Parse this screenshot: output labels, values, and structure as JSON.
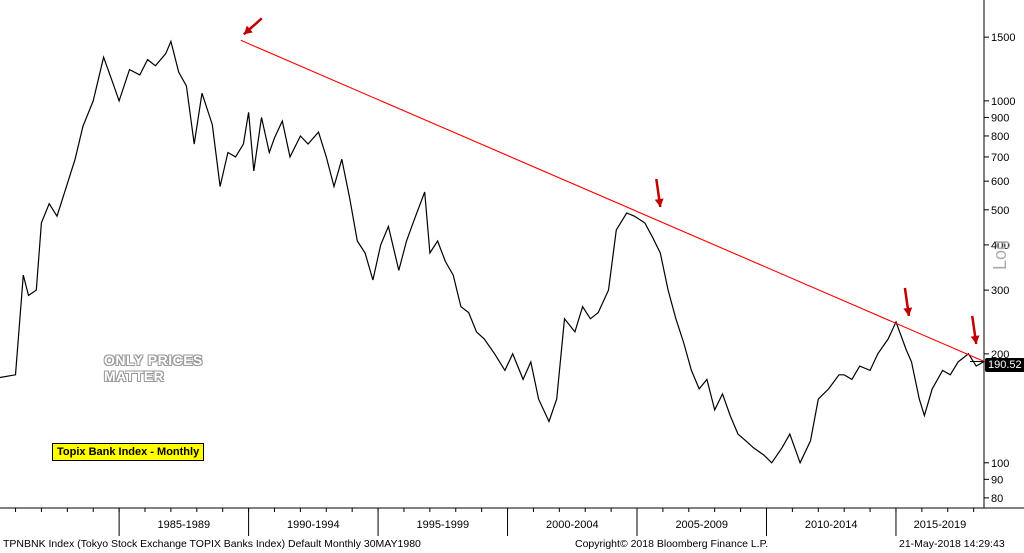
{
  "chart_data": {
    "type": "line",
    "yscale": "log",
    "ylim": [
      75,
      1900
    ],
    "y_ticks": [
      80,
      90,
      100,
      200,
      300,
      400,
      500,
      600,
      700,
      800,
      900,
      1000,
      1500
    ],
    "x_period_labels": [
      "1985-1989",
      "1990-1994",
      "1995-1999",
      "2000-2004",
      "2005-2009",
      "2010-2014",
      "2015-2019"
    ],
    "x_range": [
      1980.4,
      2018.4
    ],
    "axis_label": "Log",
    "last_value_label": "190.52",
    "series": [
      {
        "color": "#000000",
        "x": [
          1980.4,
          1981.0,
          1981.3,
          1981.5,
          1981.8,
          1982.0,
          1982.3,
          1982.6,
          1983.0,
          1983.3,
          1983.6,
          1984.0,
          1984.4,
          1984.8,
          1985.0,
          1985.4,
          1985.8,
          1986.1,
          1986.4,
          1986.8,
          1987.0,
          1987.3,
          1987.6,
          1987.9,
          1988.2,
          1988.6,
          1988.9,
          1989.2,
          1989.5,
          1989.8,
          1990.0,
          1990.2,
          1990.5,
          1990.8,
          1991.0,
          1991.3,
          1991.6,
          1992.0,
          1992.3,
          1992.7,
          1993.0,
          1993.3,
          1993.6,
          1993.9,
          1994.2,
          1994.5,
          1994.8,
          1995.1,
          1995.4,
          1995.8,
          1996.1,
          1996.4,
          1996.8,
          1997.0,
          1997.3,
          1997.6,
          1997.9,
          1998.2,
          1998.5,
          1998.8,
          1999.1,
          1999.5,
          1999.9,
          2000.2,
          2000.6,
          2000.9,
          2001.2,
          2001.6,
          2001.9,
          2002.2,
          2002.6,
          2002.9,
          2003.2,
          2003.5,
          2003.9,
          2004.2,
          2004.6,
          2004.9,
          2005.3,
          2005.6,
          2005.9,
          2006.2,
          2006.5,
          2006.8,
          2007.1,
          2007.4,
          2007.7,
          2008.0,
          2008.3,
          2008.6,
          2008.9,
          2009.2,
          2009.5,
          2009.9,
          2010.2,
          2010.6,
          2010.9,
          2011.3,
          2011.7,
          2012.0,
          2012.4,
          2012.8,
          2013.0,
          2013.3,
          2013.6,
          2014.0,
          2014.3,
          2014.7,
          2015.0,
          2015.4,
          2015.6,
          2015.9,
          2016.1,
          2016.4,
          2016.8,
          2017.1,
          2017.4,
          2017.8,
          2018.1,
          2018.4
        ],
        "values": [
          172,
          175,
          330,
          290,
          300,
          460,
          520,
          480,
          590,
          690,
          850,
          1000,
          1320,
          1100,
          1000,
          1220,
          1180,
          1300,
          1250,
          1350,
          1460,
          1200,
          1100,
          760,
          1050,
          860,
          580,
          720,
          700,
          760,
          930,
          640,
          900,
          720,
          790,
          880,
          700,
          800,
          760,
          820,
          700,
          580,
          690,
          540,
          410,
          380,
          320,
          400,
          450,
          340,
          410,
          470,
          560,
          380,
          410,
          360,
          330,
          270,
          260,
          230,
          220,
          200,
          180,
          200,
          170,
          190,
          150,
          130,
          150,
          250,
          230,
          270,
          250,
          260,
          300,
          440,
          490,
          480,
          460,
          420,
          380,
          300,
          250,
          215,
          180,
          160,
          170,
          140,
          155,
          135,
          120,
          115,
          110,
          105,
          100,
          110,
          120,
          100,
          115,
          150,
          160,
          175,
          175,
          170,
          185,
          180,
          200,
          220,
          245,
          205,
          190,
          150,
          135,
          160,
          180,
          175,
          190,
          200,
          185,
          190.52
        ]
      },
      {
        "color": "#ff0000",
        "x": [
          1989.7,
          2018.6
        ],
        "values": [
          1470,
          188
        ]
      }
    ],
    "annotations": [
      {
        "type": "arrow",
        "x": 1989.7,
        "value": 1470
      },
      {
        "type": "arrow",
        "x": 2005.9,
        "value": 490
      },
      {
        "type": "arrow",
        "x": 2015.5,
        "value": 245
      },
      {
        "type": "arrow",
        "x": 2018.1,
        "value": 205
      }
    ]
  },
  "legend_label": "Topix Bank Index - Monthly",
  "watermark": "ONLY PRICES MATTER",
  "footer": {
    "left": "TPNBNK Index (Tokyo Stock Exchange TOPIX Banks Index) Default  Monthly 30MAY1980",
    "center": "Copyright© 2018 Bloomberg Finance L.P.",
    "right": "21-May-2018 14:29:43"
  }
}
